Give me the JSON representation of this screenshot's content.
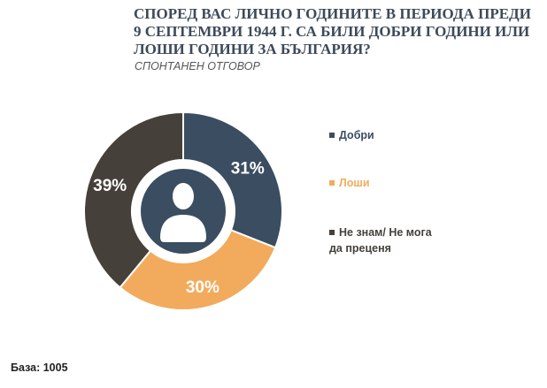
{
  "title": "СПОРЕД ВАС ЛИЧНО ГОДИНИТЕ В ПЕРИОДА ПРЕДИ 9 СЕПТЕМВРИ 1944 Г. СА БИЛИ ДОБРИ ГОДИНИ ИЛИ ЛОШИ ГОДИНИ ЗА БЪЛГАРИЯ?",
  "subtitle": "СПОНТАНЕН ОТГОВОР",
  "footer": "База: 1005",
  "colors": {
    "dobri": "#3b4d60",
    "loshi": "#f2ab5c",
    "ne_znam": "#46403b",
    "center": "#3b4d60"
  },
  "center_icon": "person-silhouette-icon",
  "chart_data": {
    "type": "pie",
    "donut": true,
    "title": "",
    "slices": [
      {
        "label": "Добри",
        "value": 31,
        "display": "31%",
        "color": "#3b4d60"
      },
      {
        "label": "Лоши",
        "value": 30,
        "display": "30%",
        "color": "#f2ab5c"
      },
      {
        "label": "Не знам/ Не мога да преценя",
        "value": 39,
        "display": "39%",
        "color": "#46403b"
      }
    ],
    "legend_placement": "right"
  }
}
